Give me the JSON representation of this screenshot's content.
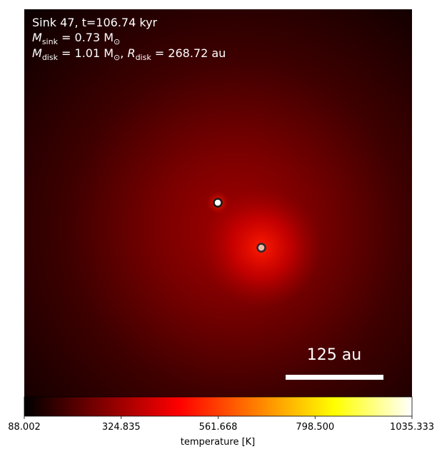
{
  "chart_data": {
    "type": "heatmap",
    "annotation": {
      "line1": "Sink 47, t=106.74 kyr",
      "line2_symbol": "M",
      "line2_sub": "sink",
      "line2_rest": " = 0.73 M",
      "line2_sun": "⊙",
      "line3_symbol": "M",
      "line3_sub": "disk",
      "line3_mid": " = 1.01 M",
      "line3_sun": "⊙",
      "line3_sep": ", ",
      "line3_symbol2": "R",
      "line3_sub2": "disk",
      "line3_rest": " = 268.72 au"
    },
    "sink_particles": [
      {
        "name": "primary",
        "fill": "#ffffff"
      },
      {
        "name": "secondary",
        "fill": "#f2b6a8"
      }
    ],
    "scale_bar": {
      "label": "125 au",
      "length_au": 125
    },
    "colorbar": {
      "label": "temperature [K]",
      "min": 88.002,
      "max": 1035.333,
      "ticks": [
        "88.002",
        "324.835",
        "561.668",
        "798.500",
        "1035.333"
      ],
      "colormap": [
        "#000000",
        "#800000",
        "#ff0000",
        "#ff8000",
        "#ffff00",
        "#ffffff"
      ]
    }
  }
}
